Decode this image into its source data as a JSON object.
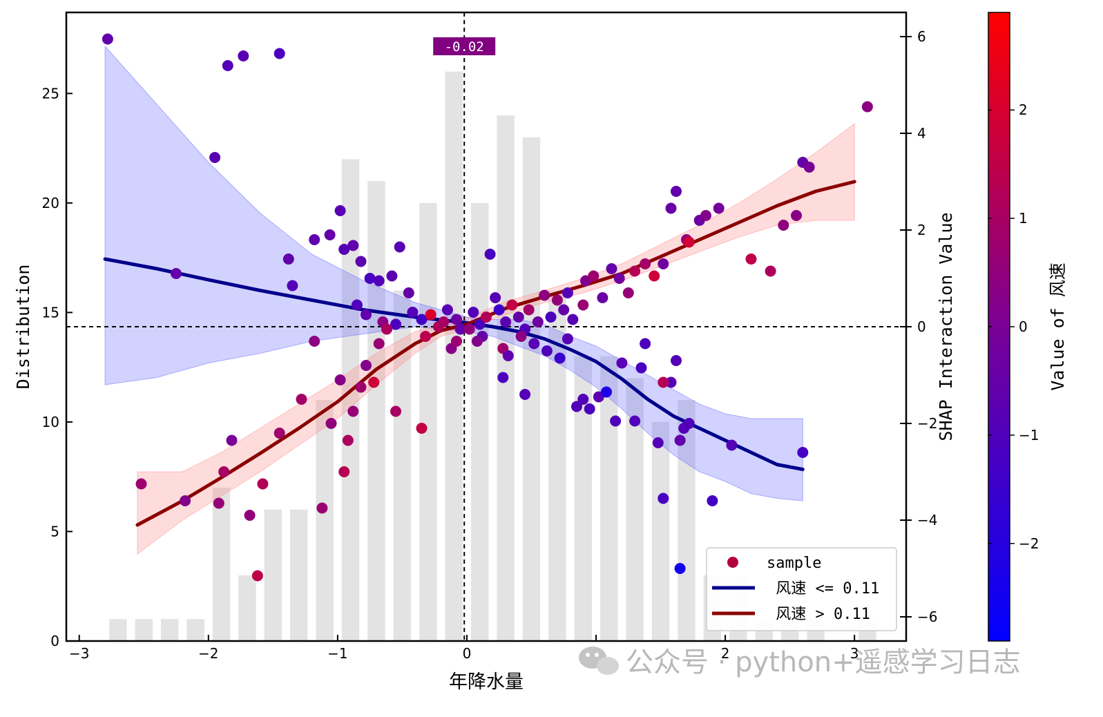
{
  "chart_data": {
    "type": "scatter",
    "xlabel": "年降水量",
    "ylabel_left": "Distribution",
    "ylabel_right": "SHAP Interaction Value",
    "colorbar_label": "Value of 风速",
    "xlim": [
      -3.1,
      3.4
    ],
    "x_ticks": [
      -3,
      -2,
      -1,
      0,
      1,
      2,
      3
    ],
    "ylim_left": [
      0,
      28.7
    ],
    "y_ticks_left": [
      0,
      5,
      10,
      15,
      20,
      25
    ],
    "ylim_right": [
      -6.5,
      6.5
    ],
    "y_ticks_right": [
      -6,
      -4,
      -2,
      0,
      2,
      4,
      6
    ],
    "colorbar_range": [
      -2.9,
      2.9
    ],
    "colorbar_ticks": [
      -2,
      -1,
      0,
      1,
      2
    ],
    "colorbar_colors": [
      "#0000ff",
      "#7a0096",
      "#ff0000"
    ],
    "histogram": {
      "bin_centers": [
        -2.7,
        -2.5,
        -2.3,
        -2.1,
        -1.9,
        -1.7,
        -1.5,
        -1.3,
        -1.1,
        -0.9,
        -0.7,
        -0.5,
        -0.3,
        -0.1,
        0.1,
        0.3,
        0.5,
        0.7,
        0.9,
        1.1,
        1.3,
        1.5,
        1.7,
        1.9,
        2.1,
        2.3,
        2.5,
        2.7,
        2.9,
        3.1
      ],
      "counts": [
        1,
        1,
        1,
        1,
        7,
        3,
        6,
        6,
        11,
        22,
        21,
        16,
        20,
        26,
        20,
        24,
        23,
        16,
        13,
        13,
        12,
        10,
        11,
        3,
        3,
        1,
        1,
        1,
        0,
        1
      ],
      "color": "#e3e3e3"
    },
    "vline_x": -0.02,
    "vline_label": "-0.02",
    "vline_label_color": "#800080",
    "hline_y": 0,
    "series": [
      {
        "name": " 风速 <= 0.11",
        "color": "#00008b",
        "band_color": "#6a6aff",
        "x": [
          -2.8,
          -2.4,
          -2.0,
          -1.6,
          -1.2,
          -0.8,
          -0.4,
          0.0,
          0.2,
          0.4,
          0.6,
          0.8,
          1.0,
          1.2,
          1.4,
          1.6,
          1.8,
          2.0,
          2.2,
          2.4,
          2.6
        ],
        "y": [
          1.4,
          1.2,
          0.97,
          0.75,
          0.55,
          0.35,
          0.2,
          0.08,
          0.0,
          -0.1,
          -0.25,
          -0.47,
          -0.72,
          -1.08,
          -1.5,
          -1.85,
          -2.1,
          -2.35,
          -2.6,
          -2.85,
          -2.95
        ],
        "lower": [
          -1.2,
          -1.05,
          -0.75,
          -0.55,
          -0.3,
          -0.15,
          0.0,
          -0.1,
          -0.2,
          -0.4,
          -0.6,
          -0.9,
          -1.25,
          -1.7,
          -2.2,
          -2.65,
          -3.0,
          -3.2,
          -3.45,
          -3.55,
          -3.6
        ],
        "upper": [
          5.8,
          4.6,
          3.4,
          2.35,
          1.5,
          0.95,
          0.5,
          0.2,
          0.15,
          0.15,
          0.05,
          -0.2,
          -0.4,
          -0.7,
          -1.0,
          -1.3,
          -1.6,
          -1.8,
          -1.9,
          -1.9,
          -1.9
        ]
      },
      {
        "name": " 风速 > 0.11",
        "color": "#8b0000",
        "band_color": "#ff8a8a",
        "x": [
          -2.55,
          -2.2,
          -1.9,
          -1.6,
          -1.3,
          -1.0,
          -0.7,
          -0.4,
          -0.2,
          0.0,
          0.3,
          0.6,
          0.9,
          1.2,
          1.5,
          1.8,
          2.1,
          2.4,
          2.7,
          3.0
        ],
        "y": [
          -4.1,
          -3.6,
          -3.12,
          -2.62,
          -2.1,
          -1.55,
          -0.88,
          -0.35,
          -0.08,
          0.05,
          0.38,
          0.62,
          0.85,
          1.1,
          1.45,
          1.8,
          2.15,
          2.5,
          2.8,
          3.0
        ],
        "lower": [
          -4.7,
          -4.0,
          -3.5,
          -3.0,
          -2.45,
          -1.9,
          -1.2,
          -0.55,
          -0.2,
          -0.05,
          0.25,
          0.5,
          0.7,
          0.95,
          1.25,
          1.55,
          1.85,
          2.1,
          2.2,
          2.2
        ],
        "upper": [
          -3.0,
          -3.0,
          -2.6,
          -2.1,
          -1.6,
          -1.1,
          -0.55,
          -0.1,
          0.05,
          0.18,
          0.52,
          0.75,
          1.0,
          1.3,
          1.7,
          2.1,
          2.55,
          3.05,
          3.6,
          4.2
        ]
      }
    ],
    "scatter": {
      "name": "sample",
      "legend_color": "#b3003c",
      "points": [
        [
          -2.78,
          5.95,
          -0.6
        ],
        [
          -1.85,
          5.4,
          -0.9
        ],
        [
          -1.73,
          5.6,
          -0.8
        ],
        [
          -1.45,
          5.65,
          -1.1
        ],
        [
          -1.95,
          3.5,
          -0.8
        ],
        [
          -2.25,
          1.1,
          -0.5
        ],
        [
          -1.38,
          1.4,
          -0.6
        ],
        [
          -1.35,
          0.85,
          -0.9
        ],
        [
          -1.18,
          1.8,
          -0.7
        ],
        [
          -1.06,
          1.9,
          -0.5
        ],
        [
          -0.98,
          2.4,
          -0.8
        ],
        [
          -0.88,
          1.68,
          -0.6
        ],
        [
          -0.82,
          1.35,
          -0.7
        ],
        [
          -0.75,
          1.0,
          -1.2
        ],
        [
          -0.95,
          1.6,
          -0.9
        ],
        [
          -0.68,
          0.95,
          -1.0
        ],
        [
          -0.58,
          1.05,
          -0.7
        ],
        [
          -0.52,
          1.65,
          -0.8
        ],
        [
          -0.45,
          0.7,
          -0.5
        ],
        [
          -0.85,
          0.45,
          -1.0
        ],
        [
          -0.78,
          0.25,
          -0.6
        ],
        [
          -0.65,
          0.1,
          0.4
        ],
        [
          -0.55,
          0.05,
          -1.1
        ],
        [
          -0.42,
          0.3,
          -0.9
        ],
        [
          -0.35,
          0.15,
          -1.3
        ],
        [
          -0.28,
          0.25,
          2.1
        ],
        [
          -0.22,
          0.0,
          1.2
        ],
        [
          -0.15,
          0.35,
          -0.8
        ],
        [
          -0.08,
          0.15,
          -0.3
        ],
        [
          -0.05,
          -0.05,
          -0.6
        ],
        [
          0.05,
          0.3,
          -0.9
        ],
        [
          0.1,
          0.05,
          -1.1
        ],
        [
          0.12,
          -0.2,
          -0.5
        ],
        [
          0.18,
          1.5,
          -1.2
        ],
        [
          0.22,
          0.6,
          -0.8
        ],
        [
          0.25,
          0.35,
          -1.4
        ],
        [
          0.3,
          0.1,
          -0.7
        ],
        [
          0.35,
          0.45,
          1.6
        ],
        [
          0.4,
          0.2,
          -0.5
        ],
        [
          0.45,
          -0.05,
          -1.0
        ],
        [
          0.48,
          0.35,
          0.9
        ],
        [
          0.55,
          0.1,
          -0.3
        ],
        [
          0.6,
          0.65,
          0.4
        ],
        [
          0.65,
          0.2,
          -1.1
        ],
        [
          0.7,
          0.55,
          0.6
        ],
        [
          0.75,
          0.35,
          -0.5
        ],
        [
          0.78,
          0.7,
          -0.9
        ],
        [
          0.82,
          0.15,
          -0.8
        ],
        [
          0.9,
          0.45,
          0.7
        ],
        [
          0.92,
          0.95,
          0.2
        ],
        [
          0.98,
          1.05,
          0.8
        ],
        [
          1.05,
          0.6,
          -0.4
        ],
        [
          1.12,
          1.2,
          -0.5
        ],
        [
          1.18,
          1.0,
          -0.2
        ],
        [
          1.25,
          0.7,
          0.6
        ],
        [
          1.3,
          1.15,
          1.3
        ],
        [
          1.38,
          1.3,
          0.9
        ],
        [
          1.45,
          1.05,
          1.8
        ],
        [
          1.52,
          1.3,
          -0.2
        ],
        [
          1.58,
          2.45,
          -0.4
        ],
        [
          1.62,
          2.8,
          -0.6
        ],
        [
          1.7,
          1.8,
          0.5
        ],
        [
          1.72,
          1.75,
          1.9
        ],
        [
          1.8,
          2.2,
          -0.3
        ],
        [
          1.85,
          2.3,
          0.2
        ],
        [
          1.95,
          2.45,
          -0.1
        ],
        [
          2.2,
          1.4,
          1.5
        ],
        [
          2.35,
          1.15,
          1.1
        ],
        [
          2.45,
          2.1,
          0.5
        ],
        [
          2.55,
          2.3,
          0.3
        ],
        [
          2.6,
          3.4,
          -0.5
        ],
        [
          2.65,
          3.3,
          0.0
        ],
        [
          3.1,
          4.55,
          0.4
        ],
        [
          -2.52,
          -3.25,
          0.8
        ],
        [
          -2.18,
          -3.6,
          0.2
        ],
        [
          -1.88,
          -3.0,
          1.0
        ],
        [
          -1.92,
          -3.65,
          0.6
        ],
        [
          -1.82,
          -2.35,
          0.0
        ],
        [
          -1.68,
          -3.9,
          0.5
        ],
        [
          -1.62,
          -5.15,
          1.5
        ],
        [
          -1.58,
          -3.25,
          1.2
        ],
        [
          -1.45,
          -2.2,
          0.8
        ],
        [
          -1.28,
          -1.5,
          0.9
        ],
        [
          -1.18,
          -0.3,
          0.4
        ],
        [
          -1.12,
          -3.75,
          0.7
        ],
        [
          -1.05,
          -2.0,
          0.5
        ],
        [
          -0.98,
          -1.1,
          0.3
        ],
        [
          -0.95,
          -3.0,
          1.3
        ],
        [
          -0.92,
          -2.35,
          1.1
        ],
        [
          -0.88,
          -1.75,
          0.6
        ],
        [
          -0.82,
          -1.25,
          0.8
        ],
        [
          -0.78,
          -0.8,
          0.2
        ],
        [
          -0.72,
          -1.15,
          1.8
        ],
        [
          -0.68,
          -0.35,
          0.7
        ],
        [
          -0.62,
          -0.05,
          1.1
        ],
        [
          -0.55,
          -1.75,
          1.0
        ],
        [
          -0.35,
          -2.1,
          1.6
        ],
        [
          -0.32,
          -0.2,
          1.4
        ],
        [
          -0.18,
          0.1,
          1.0
        ],
        [
          -0.12,
          -0.45,
          0.3
        ],
        [
          -0.08,
          -0.3,
          0.7
        ],
        [
          0.02,
          -0.05,
          0.5
        ],
        [
          0.08,
          -0.3,
          0.2
        ],
        [
          0.15,
          0.2,
          1.2
        ],
        [
          0.28,
          -0.45,
          0.8
        ],
        [
          0.32,
          -0.6,
          -0.6
        ],
        [
          0.42,
          -0.2,
          0.4
        ],
        [
          0.52,
          -0.35,
          -0.8
        ],
        [
          0.62,
          -0.5,
          -1.0
        ],
        [
          0.72,
          -0.65,
          -1.5
        ],
        [
          0.78,
          -0.25,
          -0.8
        ],
        [
          0.85,
          -1.65,
          -0.9
        ],
        [
          0.9,
          -1.5,
          -0.9
        ],
        [
          0.95,
          -1.7,
          -1.1
        ],
        [
          1.02,
          -1.45,
          -0.7
        ],
        [
          1.08,
          -1.35,
          -2.2
        ],
        [
          1.15,
          -1.95,
          -1.0
        ],
        [
          1.2,
          -0.75,
          -0.8
        ],
        [
          1.3,
          -1.95,
          -1.0
        ],
        [
          1.38,
          -0.35,
          -1.1
        ],
        [
          1.48,
          -2.4,
          -0.9
        ],
        [
          1.52,
          -3.55,
          -1.2
        ],
        [
          1.58,
          -1.15,
          -0.8
        ],
        [
          1.62,
          -0.7,
          -0.9
        ],
        [
          1.65,
          -2.35,
          -0.6
        ],
        [
          1.68,
          -2.1,
          -0.9
        ],
        [
          1.72,
          -2.0,
          -1.0
        ],
        [
          1.9,
          -3.6,
          -1.3
        ],
        [
          2.05,
          -2.45,
          -0.9
        ],
        [
          2.6,
          -2.6,
          -1.2
        ],
        [
          1.65,
          -5.0,
          -2.5
        ],
        [
          1.35,
          -0.85,
          -1.2
        ],
        [
          1.52,
          -1.15,
          1.3
        ],
        [
          0.45,
          -1.4,
          -0.9
        ],
        [
          0.28,
          -1.05,
          -1.1
        ]
      ]
    }
  },
  "watermark": {
    "text": "公众号 · python+遥感学习日志"
  }
}
